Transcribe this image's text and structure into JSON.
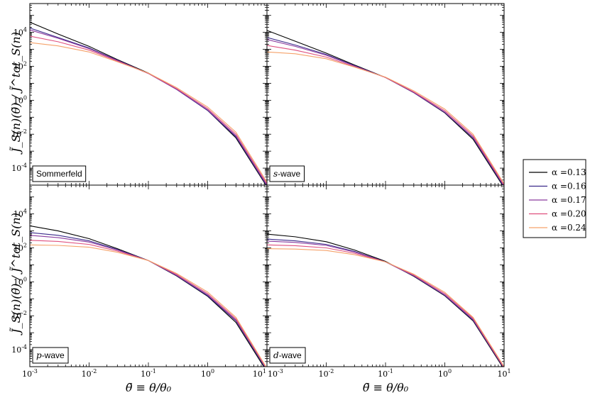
{
  "chart_data": {
    "type": "line",
    "xscale": "log",
    "yscale": "log",
    "xlim": [
      0.001,
      10
    ],
    "ylim": [
      1e-05,
      500000
    ],
    "shared_axes": true,
    "xlabel": "θ̃ ≡ θ/θ₀",
    "ylabel": "J̃_S(n)(θ̃) / J̃^tot_S(n)",
    "x_tick_labels": [
      "10^-3",
      "10^-2",
      "10^-1",
      "10^0",
      "10^1"
    ],
    "y_tick_labels": [
      "10^-4",
      "10^-2",
      "10^0",
      "10^2",
      "10^4"
    ],
    "legend_position": "right",
    "legend": [
      {
        "label": "α =0.13",
        "color": "#000000"
      },
      {
        "label": "α =0.16",
        "color": "#3b2a8a"
      },
      {
        "label": "α =0.17",
        "color": "#8a3a9e"
      },
      {
        "label": "α =0.20",
        "color": "#df4f7e"
      },
      {
        "label": "α =0.24",
        "color": "#f5a26a"
      }
    ],
    "x": [
      0.001,
      0.003,
      0.01,
      0.03,
      0.1,
      0.3,
      1,
      3,
      10
    ],
    "panels": [
      {
        "label": "Sommerfeld",
        "series": [
          {
            "name": "α =0.13",
            "values": [
              40000,
              8000,
              1500,
              250,
              40,
              4.5,
              0.25,
              0.006,
              8e-06
            ]
          },
          {
            "name": "α =0.16",
            "values": [
              18000,
              5000,
              1200,
              230,
              38,
              4.3,
              0.25,
              0.007,
              9e-06
            ]
          },
          {
            "name": "α =0.17",
            "values": [
              14000,
              4500,
              1100,
              220,
              38,
              4.4,
              0.27,
              0.008,
              1e-05
            ]
          },
          {
            "name": "α =0.20",
            "values": [
              6000,
              2800,
              900,
              200,
              38,
              4.8,
              0.32,
              0.01,
              1.2e-05
            ]
          },
          {
            "name": "α =0.24",
            "values": [
              2500,
              1600,
              700,
              185,
              40,
              5.5,
              0.4,
              0.013,
              1.5e-05
            ]
          }
        ]
      },
      {
        "label": "s-wave",
        "series": [
          {
            "name": "α =0.13",
            "values": [
              13000,
              3000,
              600,
              120,
              22,
              2.8,
              0.18,
              0.005,
              7e-06
            ]
          },
          {
            "name": "α =0.16",
            "values": [
              5000,
              1800,
              500,
              110,
              22,
              2.8,
              0.19,
              0.006,
              8e-06
            ]
          },
          {
            "name": "α =0.17",
            "values": [
              3800,
              1500,
              450,
              105,
              22,
              2.9,
              0.2,
              0.0065,
              9e-06
            ]
          },
          {
            "name": "α =0.20",
            "values": [
              1700,
              900,
              350,
              95,
              22,
              3.1,
              0.24,
              0.008,
              1e-05
            ]
          },
          {
            "name": "α =0.24",
            "values": [
              700,
              550,
              280,
              90,
              23,
              3.6,
              0.3,
              0.01,
              1.2e-05
            ]
          }
        ]
      },
      {
        "label": "p-wave",
        "series": [
          {
            "name": "α =0.13",
            "values": [
              2000,
              1000,
              350,
              90,
              18,
              2.2,
              0.14,
              0.004,
              5e-06
            ]
          },
          {
            "name": "α =0.16",
            "values": [
              800,
              550,
              260,
              80,
              18,
              2.3,
              0.15,
              0.005,
              6e-06
            ]
          },
          {
            "name": "α =0.17",
            "values": [
              550,
              400,
              220,
              75,
              18,
              2.4,
              0.17,
              0.0055,
              7e-06
            ]
          },
          {
            "name": "α =0.20",
            "values": [
              280,
              240,
              160,
              65,
              18,
              2.7,
              0.2,
              0.0065,
              7e-06
            ]
          },
          {
            "name": "α =0.24",
            "values": [
              150,
              140,
              110,
              55,
              18,
              3.1,
              0.25,
              0.008,
              8e-06
            ]
          }
        ]
      },
      {
        "label": "d-wave",
        "series": [
          {
            "name": "α =0.13",
            "values": [
              650,
              450,
              230,
              75,
              16,
              2.1,
              0.15,
              0.005,
              7e-06
            ]
          },
          {
            "name": "α =0.16",
            "values": [
              330,
              260,
              160,
              62,
              15,
              2.2,
              0.16,
              0.0055,
              8e-06
            ]
          },
          {
            "name": "α =0.17",
            "values": [
              250,
              210,
              140,
              57,
              15,
              2.3,
              0.17,
              0.006,
              8e-06
            ]
          },
          {
            "name": "α =0.20",
            "values": [
              150,
              135,
              100,
              48,
              15,
              2.5,
              0.2,
              0.007,
              9e-06
            ]
          },
          {
            "name": "α =0.24",
            "values": [
              90,
              85,
              70,
              40,
              15,
              2.8,
              0.24,
              0.008,
              1e-05
            ]
          }
        ]
      }
    ]
  }
}
